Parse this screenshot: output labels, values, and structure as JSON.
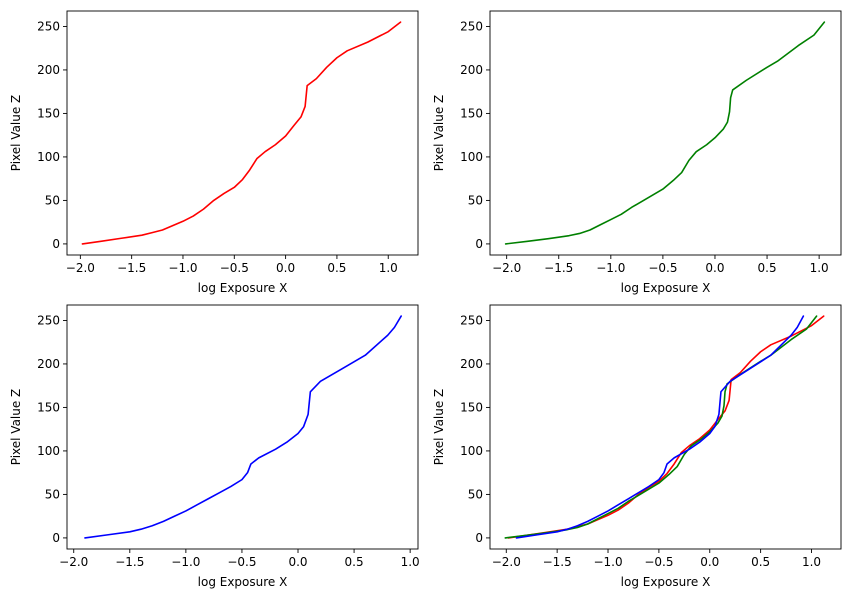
{
  "chart_data": [
    {
      "type": "line",
      "title": "",
      "xlabel": "log Exposure X",
      "ylabel": "Pixel Value Z",
      "xlim": [
        -2.13,
        1.29
      ],
      "ylim": [
        -12.75,
        267.75
      ],
      "xticks": [
        -2.0,
        -1.5,
        -1.0,
        -0.5,
        0.0,
        0.5,
        1.0
      ],
      "xtick_labels": [
        "−2.0",
        "−1.5",
        "−1.0",
        "−0.5",
        "0.0",
        "0.5",
        "1.0"
      ],
      "yticks": [
        0,
        50,
        100,
        150,
        200,
        250
      ],
      "ytick_labels": [
        "0",
        "50",
        "100",
        "150",
        "200",
        "250"
      ],
      "grid": false,
      "series": [
        {
          "color": "#ff0000",
          "points": [
            [
              -1.98,
              0
            ],
            [
              -1.8,
              3
            ],
            [
              -1.6,
              6.5
            ],
            [
              -1.4,
              10
            ],
            [
              -1.3,
              13
            ],
            [
              -1.2,
              16
            ],
            [
              -1.1,
              21
            ],
            [
              -1.0,
              26
            ],
            [
              -0.9,
              32
            ],
            [
              -0.8,
              40
            ],
            [
              -0.7,
              50
            ],
            [
              -0.6,
              58
            ],
            [
              -0.5,
              65
            ],
            [
              -0.42,
              74
            ],
            [
              -0.35,
              85
            ],
            [
              -0.28,
              98
            ],
            [
              -0.2,
              106
            ],
            [
              -0.1,
              114
            ],
            [
              0.0,
              124
            ],
            [
              0.08,
              136
            ],
            [
              0.15,
              146
            ],
            [
              0.19,
              158
            ],
            [
              0.2,
              170
            ],
            [
              0.21,
              182
            ],
            [
              0.3,
              190
            ],
            [
              0.4,
              203
            ],
            [
              0.5,
              214
            ],
            [
              0.6,
              222
            ],
            [
              0.8,
              232
            ],
            [
              1.0,
              244
            ],
            [
              1.12,
              255
            ]
          ]
        }
      ]
    },
    {
      "type": "line",
      "title": "",
      "xlabel": "log Exposure X",
      "ylabel": "Pixel Value Z",
      "xlim": [
        -2.16,
        1.21
      ],
      "ylim": [
        -12.75,
        267.75
      ],
      "xticks": [
        -2.0,
        -1.5,
        -1.0,
        -0.5,
        0.0,
        0.5,
        1.0
      ],
      "xtick_labels": [
        "−2.0",
        "−1.5",
        "−1.0",
        "−0.5",
        "0.0",
        "0.5",
        "1.0"
      ],
      "yticks": [
        0,
        50,
        100,
        150,
        200,
        250
      ],
      "ytick_labels": [
        "0",
        "50",
        "100",
        "150",
        "200",
        "250"
      ],
      "grid": false,
      "series": [
        {
          "color": "#008000",
          "points": [
            [
              -2.01,
              0
            ],
            [
              -1.8,
              3
            ],
            [
              -1.6,
              6
            ],
            [
              -1.4,
              9.5
            ],
            [
              -1.3,
              12
            ],
            [
              -1.2,
              16
            ],
            [
              -1.1,
              22
            ],
            [
              -1.0,
              28
            ],
            [
              -0.9,
              34
            ],
            [
              -0.8,
              42
            ],
            [
              -0.7,
              49
            ],
            [
              -0.6,
              56
            ],
            [
              -0.5,
              63
            ],
            [
              -0.4,
              73
            ],
            [
              -0.32,
              82
            ],
            [
              -0.25,
              96
            ],
            [
              -0.18,
              106
            ],
            [
              -0.08,
              114
            ],
            [
              0.0,
              122
            ],
            [
              0.08,
              132
            ],
            [
              0.12,
              140
            ],
            [
              0.14,
              152
            ],
            [
              0.15,
              168
            ],
            [
              0.17,
              177
            ],
            [
              0.3,
              188
            ],
            [
              0.5,
              203
            ],
            [
              0.6,
              210
            ],
            [
              0.8,
              228
            ],
            [
              0.95,
              240
            ],
            [
              1.05,
              255
            ]
          ]
        }
      ]
    },
    {
      "type": "line",
      "title": "",
      "xlabel": "log Exposure X",
      "ylabel": "Pixel Value Z",
      "xlim": [
        -2.06,
        1.07
      ],
      "ylim": [
        -12.75,
        267.75
      ],
      "xticks": [
        -2.0,
        -1.5,
        -1.0,
        -0.5,
        0.0,
        0.5,
        1.0
      ],
      "xtick_labels": [
        "−2.0",
        "−1.5",
        "−1.0",
        "−0.5",
        "0.0",
        "0.5",
        "1.0"
      ],
      "yticks": [
        0,
        50,
        100,
        150,
        200,
        250
      ],
      "ytick_labels": [
        "0",
        "50",
        "100",
        "150",
        "200",
        "250"
      ],
      "grid": false,
      "series": [
        {
          "color": "#0000ff",
          "points": [
            [
              -1.9,
              0
            ],
            [
              -1.7,
              3.5
            ],
            [
              -1.5,
              7
            ],
            [
              -1.4,
              10
            ],
            [
              -1.3,
              14
            ],
            [
              -1.2,
              19
            ],
            [
              -1.1,
              25
            ],
            [
              -1.0,
              31
            ],
            [
              -0.9,
              38
            ],
            [
              -0.8,
              45
            ],
            [
              -0.7,
              52
            ],
            [
              -0.6,
              59
            ],
            [
              -0.5,
              67
            ],
            [
              -0.45,
              75
            ],
            [
              -0.42,
              85
            ],
            [
              -0.35,
              92
            ],
            [
              -0.2,
              102
            ],
            [
              -0.1,
              110
            ],
            [
              0.0,
              120
            ],
            [
              0.05,
              128
            ],
            [
              0.09,
              142
            ],
            [
              0.1,
              155
            ],
            [
              0.11,
              168
            ],
            [
              0.2,
              180
            ],
            [
              0.4,
              195
            ],
            [
              0.6,
              210
            ],
            [
              0.8,
              233
            ],
            [
              0.86,
              242
            ],
            [
              0.92,
              255
            ]
          ]
        }
      ]
    },
    {
      "type": "line",
      "title": "",
      "xlabel": "log Exposure X",
      "ylabel": "Pixel Value Z",
      "xlim": [
        -2.16,
        1.29
      ],
      "ylim": [
        -12.75,
        267.75
      ],
      "xticks": [
        -2.0,
        -1.5,
        -1.0,
        -0.5,
        0.0,
        0.5,
        1.0
      ],
      "xtick_labels": [
        "−2.0",
        "−1.5",
        "−1.0",
        "−0.5",
        "0.0",
        "0.5",
        "1.0"
      ],
      "yticks": [
        0,
        50,
        100,
        150,
        200,
        250
      ],
      "ytick_labels": [
        "0",
        "50",
        "100",
        "150",
        "200",
        "250"
      ],
      "grid": false,
      "series": [
        {
          "color": "#ff0000",
          "points": [
            [
              -1.98,
              0
            ],
            [
              -1.8,
              3
            ],
            [
              -1.6,
              6.5
            ],
            [
              -1.4,
              10
            ],
            [
              -1.3,
              13
            ],
            [
              -1.2,
              16
            ],
            [
              -1.1,
              21
            ],
            [
              -1.0,
              26
            ],
            [
              -0.9,
              32
            ],
            [
              -0.8,
              40
            ],
            [
              -0.7,
              50
            ],
            [
              -0.6,
              58
            ],
            [
              -0.5,
              65
            ],
            [
              -0.42,
              74
            ],
            [
              -0.35,
              85
            ],
            [
              -0.28,
              98
            ],
            [
              -0.2,
              106
            ],
            [
              -0.1,
              114
            ],
            [
              0.0,
              124
            ],
            [
              0.08,
              136
            ],
            [
              0.15,
              146
            ],
            [
              0.19,
              158
            ],
            [
              0.2,
              170
            ],
            [
              0.21,
              182
            ],
            [
              0.3,
              190
            ],
            [
              0.4,
              203
            ],
            [
              0.5,
              214
            ],
            [
              0.6,
              222
            ],
            [
              0.8,
              232
            ],
            [
              1.0,
              244
            ],
            [
              1.12,
              255
            ]
          ]
        },
        {
          "color": "#008000",
          "points": [
            [
              -2.01,
              0
            ],
            [
              -1.8,
              3
            ],
            [
              -1.6,
              6
            ],
            [
              -1.4,
              9.5
            ],
            [
              -1.3,
              12
            ],
            [
              -1.2,
              16
            ],
            [
              -1.1,
              22
            ],
            [
              -1.0,
              28
            ],
            [
              -0.9,
              34
            ],
            [
              -0.8,
              42
            ],
            [
              -0.7,
              49
            ],
            [
              -0.6,
              56
            ],
            [
              -0.5,
              63
            ],
            [
              -0.4,
              73
            ],
            [
              -0.32,
              82
            ],
            [
              -0.25,
              96
            ],
            [
              -0.18,
              106
            ],
            [
              -0.08,
              114
            ],
            [
              0.0,
              122
            ],
            [
              0.08,
              132
            ],
            [
              0.12,
              140
            ],
            [
              0.14,
              152
            ],
            [
              0.15,
              168
            ],
            [
              0.17,
              177
            ],
            [
              0.3,
              188
            ],
            [
              0.5,
              203
            ],
            [
              0.6,
              210
            ],
            [
              0.8,
              228
            ],
            [
              0.95,
              240
            ],
            [
              1.05,
              255
            ]
          ]
        },
        {
          "color": "#0000ff",
          "points": [
            [
              -1.9,
              0
            ],
            [
              -1.7,
              3.5
            ],
            [
              -1.5,
              7
            ],
            [
              -1.4,
              10
            ],
            [
              -1.3,
              14
            ],
            [
              -1.2,
              19
            ],
            [
              -1.1,
              25
            ],
            [
              -1.0,
              31
            ],
            [
              -0.9,
              38
            ],
            [
              -0.8,
              45
            ],
            [
              -0.7,
              52
            ],
            [
              -0.6,
              59
            ],
            [
              -0.5,
              67
            ],
            [
              -0.45,
              75
            ],
            [
              -0.42,
              85
            ],
            [
              -0.35,
              92
            ],
            [
              -0.2,
              102
            ],
            [
              -0.1,
              110
            ],
            [
              0.0,
              120
            ],
            [
              0.05,
              128
            ],
            [
              0.09,
              142
            ],
            [
              0.1,
              155
            ],
            [
              0.11,
              168
            ],
            [
              0.2,
              180
            ],
            [
              0.4,
              195
            ],
            [
              0.6,
              210
            ],
            [
              0.8,
              233
            ],
            [
              0.86,
              242
            ],
            [
              0.92,
              255
            ]
          ]
        }
      ]
    }
  ]
}
